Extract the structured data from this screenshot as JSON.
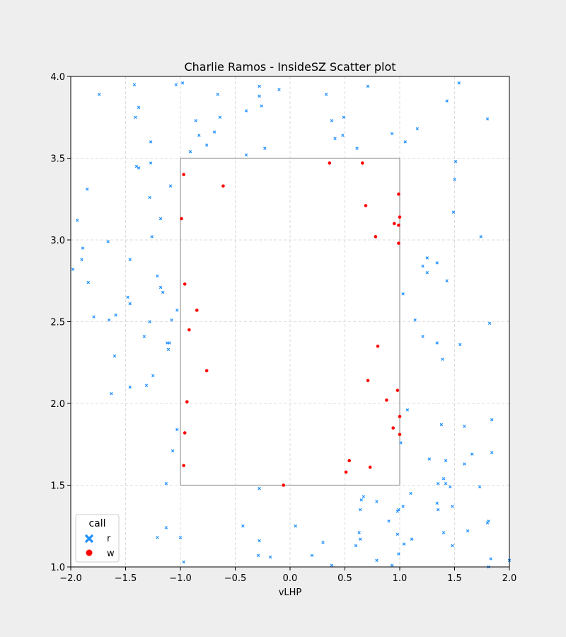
{
  "chart_data": {
    "type": "scatter",
    "title": "Charlie Ramos - InsideSZ Scatter plot",
    "xlabel": "vLHP",
    "ylabel": "",
    "xlim": [
      -2.0,
      2.0
    ],
    "ylim": [
      1.0,
      4.0
    ],
    "grid": true,
    "x_ticks": [
      "-2.0",
      "-1.5",
      "-1.0",
      "-0.5",
      "0.0",
      "0.5",
      "1.0",
      "1.5",
      "2.0"
    ],
    "y_ticks": [
      "1.0",
      "1.5",
      "2.0",
      "2.5",
      "3.0",
      "3.5",
      "4.0"
    ],
    "strike_zone": {
      "x": [
        -1.0,
        1.0
      ],
      "y": [
        1.5,
        3.5
      ]
    },
    "legend": {
      "title": "call",
      "placement": "lower-left",
      "entries": [
        "r",
        "w"
      ]
    },
    "series": [
      {
        "name": "r",
        "marker": "x",
        "color": "#1e90ff",
        "points": [
          [
            -1.74,
            3.89
          ],
          [
            -1.42,
            3.95
          ],
          [
            -1.04,
            3.95
          ],
          [
            -0.98,
            3.96
          ],
          [
            -0.28,
            3.94
          ],
          [
            -0.1,
            3.92
          ],
          [
            0.33,
            3.89
          ],
          [
            0.71,
            3.94
          ],
          [
            1.54,
            3.96
          ],
          [
            -0.28,
            3.88
          ],
          [
            -0.66,
            3.89
          ],
          [
            -1.38,
            3.81
          ],
          [
            -0.26,
            3.82
          ],
          [
            1.43,
            3.85
          ],
          [
            -1.41,
            3.75
          ],
          [
            -0.64,
            3.75
          ],
          [
            -0.4,
            3.79
          ],
          [
            0.38,
            3.73
          ],
          [
            0.49,
            3.75
          ],
          [
            -0.86,
            3.73
          ],
          [
            1.8,
            3.74
          ],
          [
            1.16,
            3.68
          ],
          [
            -0.69,
            3.66
          ],
          [
            -0.83,
            3.64
          ],
          [
            0.93,
            3.65
          ],
          [
            0.48,
            3.64
          ],
          [
            0.41,
            3.62
          ],
          [
            1.05,
            3.6
          ],
          [
            -1.27,
            3.6
          ],
          [
            -0.76,
            3.58
          ],
          [
            0.61,
            3.56
          ],
          [
            -0.23,
            3.56
          ],
          [
            -0.91,
            3.54
          ],
          [
            -0.4,
            3.52
          ],
          [
            1.51,
            3.48
          ],
          [
            -1.27,
            3.47
          ],
          [
            -1.4,
            3.45
          ],
          [
            -1.38,
            3.44
          ],
          [
            1.5,
            3.37
          ],
          [
            -1.09,
            3.33
          ],
          [
            -1.85,
            3.31
          ],
          [
            -1.28,
            3.26
          ],
          [
            1.49,
            3.17
          ],
          [
            -1.18,
            3.13
          ],
          [
            -1.94,
            3.12
          ],
          [
            -1.26,
            3.02
          ],
          [
            1.74,
            3.02
          ],
          [
            -1.66,
            2.99
          ],
          [
            -1.89,
            2.95
          ],
          [
            -1.9,
            2.88
          ],
          [
            -1.46,
            2.88
          ],
          [
            1.25,
            2.89
          ],
          [
            1.34,
            2.86
          ],
          [
            1.21,
            2.84
          ],
          [
            -1.98,
            2.82
          ],
          [
            1.25,
            2.8
          ],
          [
            -1.21,
            2.78
          ],
          [
            1.43,
            2.75
          ],
          [
            -1.84,
            2.74
          ],
          [
            -1.18,
            2.71
          ],
          [
            -1.16,
            2.68
          ],
          [
            1.03,
            2.67
          ],
          [
            -1.48,
            2.65
          ],
          [
            -1.46,
            2.61
          ],
          [
            -1.03,
            2.57
          ],
          [
            -1.59,
            2.54
          ],
          [
            -1.79,
            2.53
          ],
          [
            1.14,
            2.51
          ],
          [
            -1.65,
            2.51
          ],
          [
            -1.28,
            2.5
          ],
          [
            -1.08,
            2.51
          ],
          [
            1.82,
            2.49
          ],
          [
            1.21,
            2.41
          ],
          [
            -1.33,
            2.41
          ],
          [
            1.34,
            2.37
          ],
          [
            -1.12,
            2.37
          ],
          [
            -1.1,
            2.37
          ],
          [
            1.55,
            2.36
          ],
          [
            -1.11,
            2.33
          ],
          [
            -1.6,
            2.29
          ],
          [
            1.39,
            2.27
          ],
          [
            -1.25,
            2.17
          ],
          [
            -1.31,
            2.11
          ],
          [
            -1.46,
            2.1
          ],
          [
            -1.63,
            2.06
          ],
          [
            1.07,
            1.96
          ],
          [
            1.84,
            1.9
          ],
          [
            1.38,
            1.87
          ],
          [
            1.59,
            1.86
          ],
          [
            -1.03,
            1.84
          ],
          [
            1.01,
            1.76
          ],
          [
            -1.07,
            1.71
          ],
          [
            1.84,
            1.7
          ],
          [
            1.66,
            1.69
          ],
          [
            1.27,
            1.66
          ],
          [
            1.42,
            1.65
          ],
          [
            1.59,
            1.63
          ],
          [
            1.4,
            1.54
          ],
          [
            -1.13,
            1.51
          ],
          [
            1.35,
            1.51
          ],
          [
            1.42,
            1.51
          ],
          [
            1.46,
            1.49
          ],
          [
            1.73,
            1.49
          ],
          [
            -0.28,
            1.48
          ],
          [
            1.1,
            1.45
          ],
          [
            0.67,
            1.43
          ],
          [
            0.65,
            1.41
          ],
          [
            0.79,
            1.4
          ],
          [
            1.34,
            1.39
          ],
          [
            1.48,
            1.37
          ],
          [
            1.03,
            1.37
          ],
          [
            0.64,
            1.35
          ],
          [
            1.35,
            1.35
          ],
          [
            0.99,
            1.35
          ],
          [
            0.98,
            1.34
          ],
          [
            0.9,
            1.28
          ],
          [
            1.81,
            1.28
          ],
          [
            1.8,
            1.27
          ],
          [
            -0.43,
            1.25
          ],
          [
            0.05,
            1.25
          ],
          [
            -1.13,
            1.24
          ],
          [
            0.63,
            1.21
          ],
          [
            1.4,
            1.21
          ],
          [
            0.98,
            1.2
          ],
          [
            1.62,
            1.22
          ],
          [
            -1.21,
            1.18
          ],
          [
            -1.0,
            1.18
          ],
          [
            0.64,
            1.17
          ],
          [
            1.11,
            1.17
          ],
          [
            -0.28,
            1.16
          ],
          [
            0.3,
            1.15
          ],
          [
            1.04,
            1.14
          ],
          [
            0.6,
            1.13
          ],
          [
            1.48,
            1.13
          ],
          [
            0.99,
            1.08
          ],
          [
            -0.29,
            1.07
          ],
          [
            0.2,
            1.07
          ],
          [
            -0.18,
            1.06
          ],
          [
            0.79,
            1.04
          ],
          [
            1.83,
            1.05
          ],
          [
            -0.97,
            1.03
          ],
          [
            2.0,
            1.04
          ],
          [
            0.38,
            1.01
          ],
          [
            0.93,
            1.01
          ],
          [
            1.81,
            1.0
          ]
        ]
      },
      {
        "name": "w",
        "marker": "o",
        "color": "#ff0000",
        "points": [
          [
            0.36,
            3.47
          ],
          [
            0.66,
            3.47
          ],
          [
            -0.97,
            3.4
          ],
          [
            -0.61,
            3.33
          ],
          [
            0.99,
            3.28
          ],
          [
            0.69,
            3.21
          ],
          [
            1.0,
            3.14
          ],
          [
            -0.99,
            3.13
          ],
          [
            0.95,
            3.1
          ],
          [
            0.99,
            3.09
          ],
          [
            0.78,
            3.02
          ],
          [
            0.99,
            2.98
          ],
          [
            -0.96,
            2.73
          ],
          [
            -0.85,
            2.57
          ],
          [
            -0.92,
            2.45
          ],
          [
            0.8,
            2.35
          ],
          [
            -0.76,
            2.2
          ],
          [
            0.71,
            2.14
          ],
          [
            0.98,
            2.08
          ],
          [
            -0.94,
            2.01
          ],
          [
            0.88,
            2.02
          ],
          [
            1.0,
            1.92
          ],
          [
            0.94,
            1.85
          ],
          [
            -0.96,
            1.82
          ],
          [
            1.0,
            1.81
          ],
          [
            0.54,
            1.65
          ],
          [
            -0.97,
            1.62
          ],
          [
            0.73,
            1.61
          ],
          [
            0.51,
            1.58
          ],
          [
            -0.06,
            1.5
          ]
        ]
      }
    ]
  },
  "colors": {
    "figure_bg": "#eeeeee",
    "plot_bg": "#ffffff",
    "grid": "#d3d3d3",
    "zone": "#999999"
  }
}
